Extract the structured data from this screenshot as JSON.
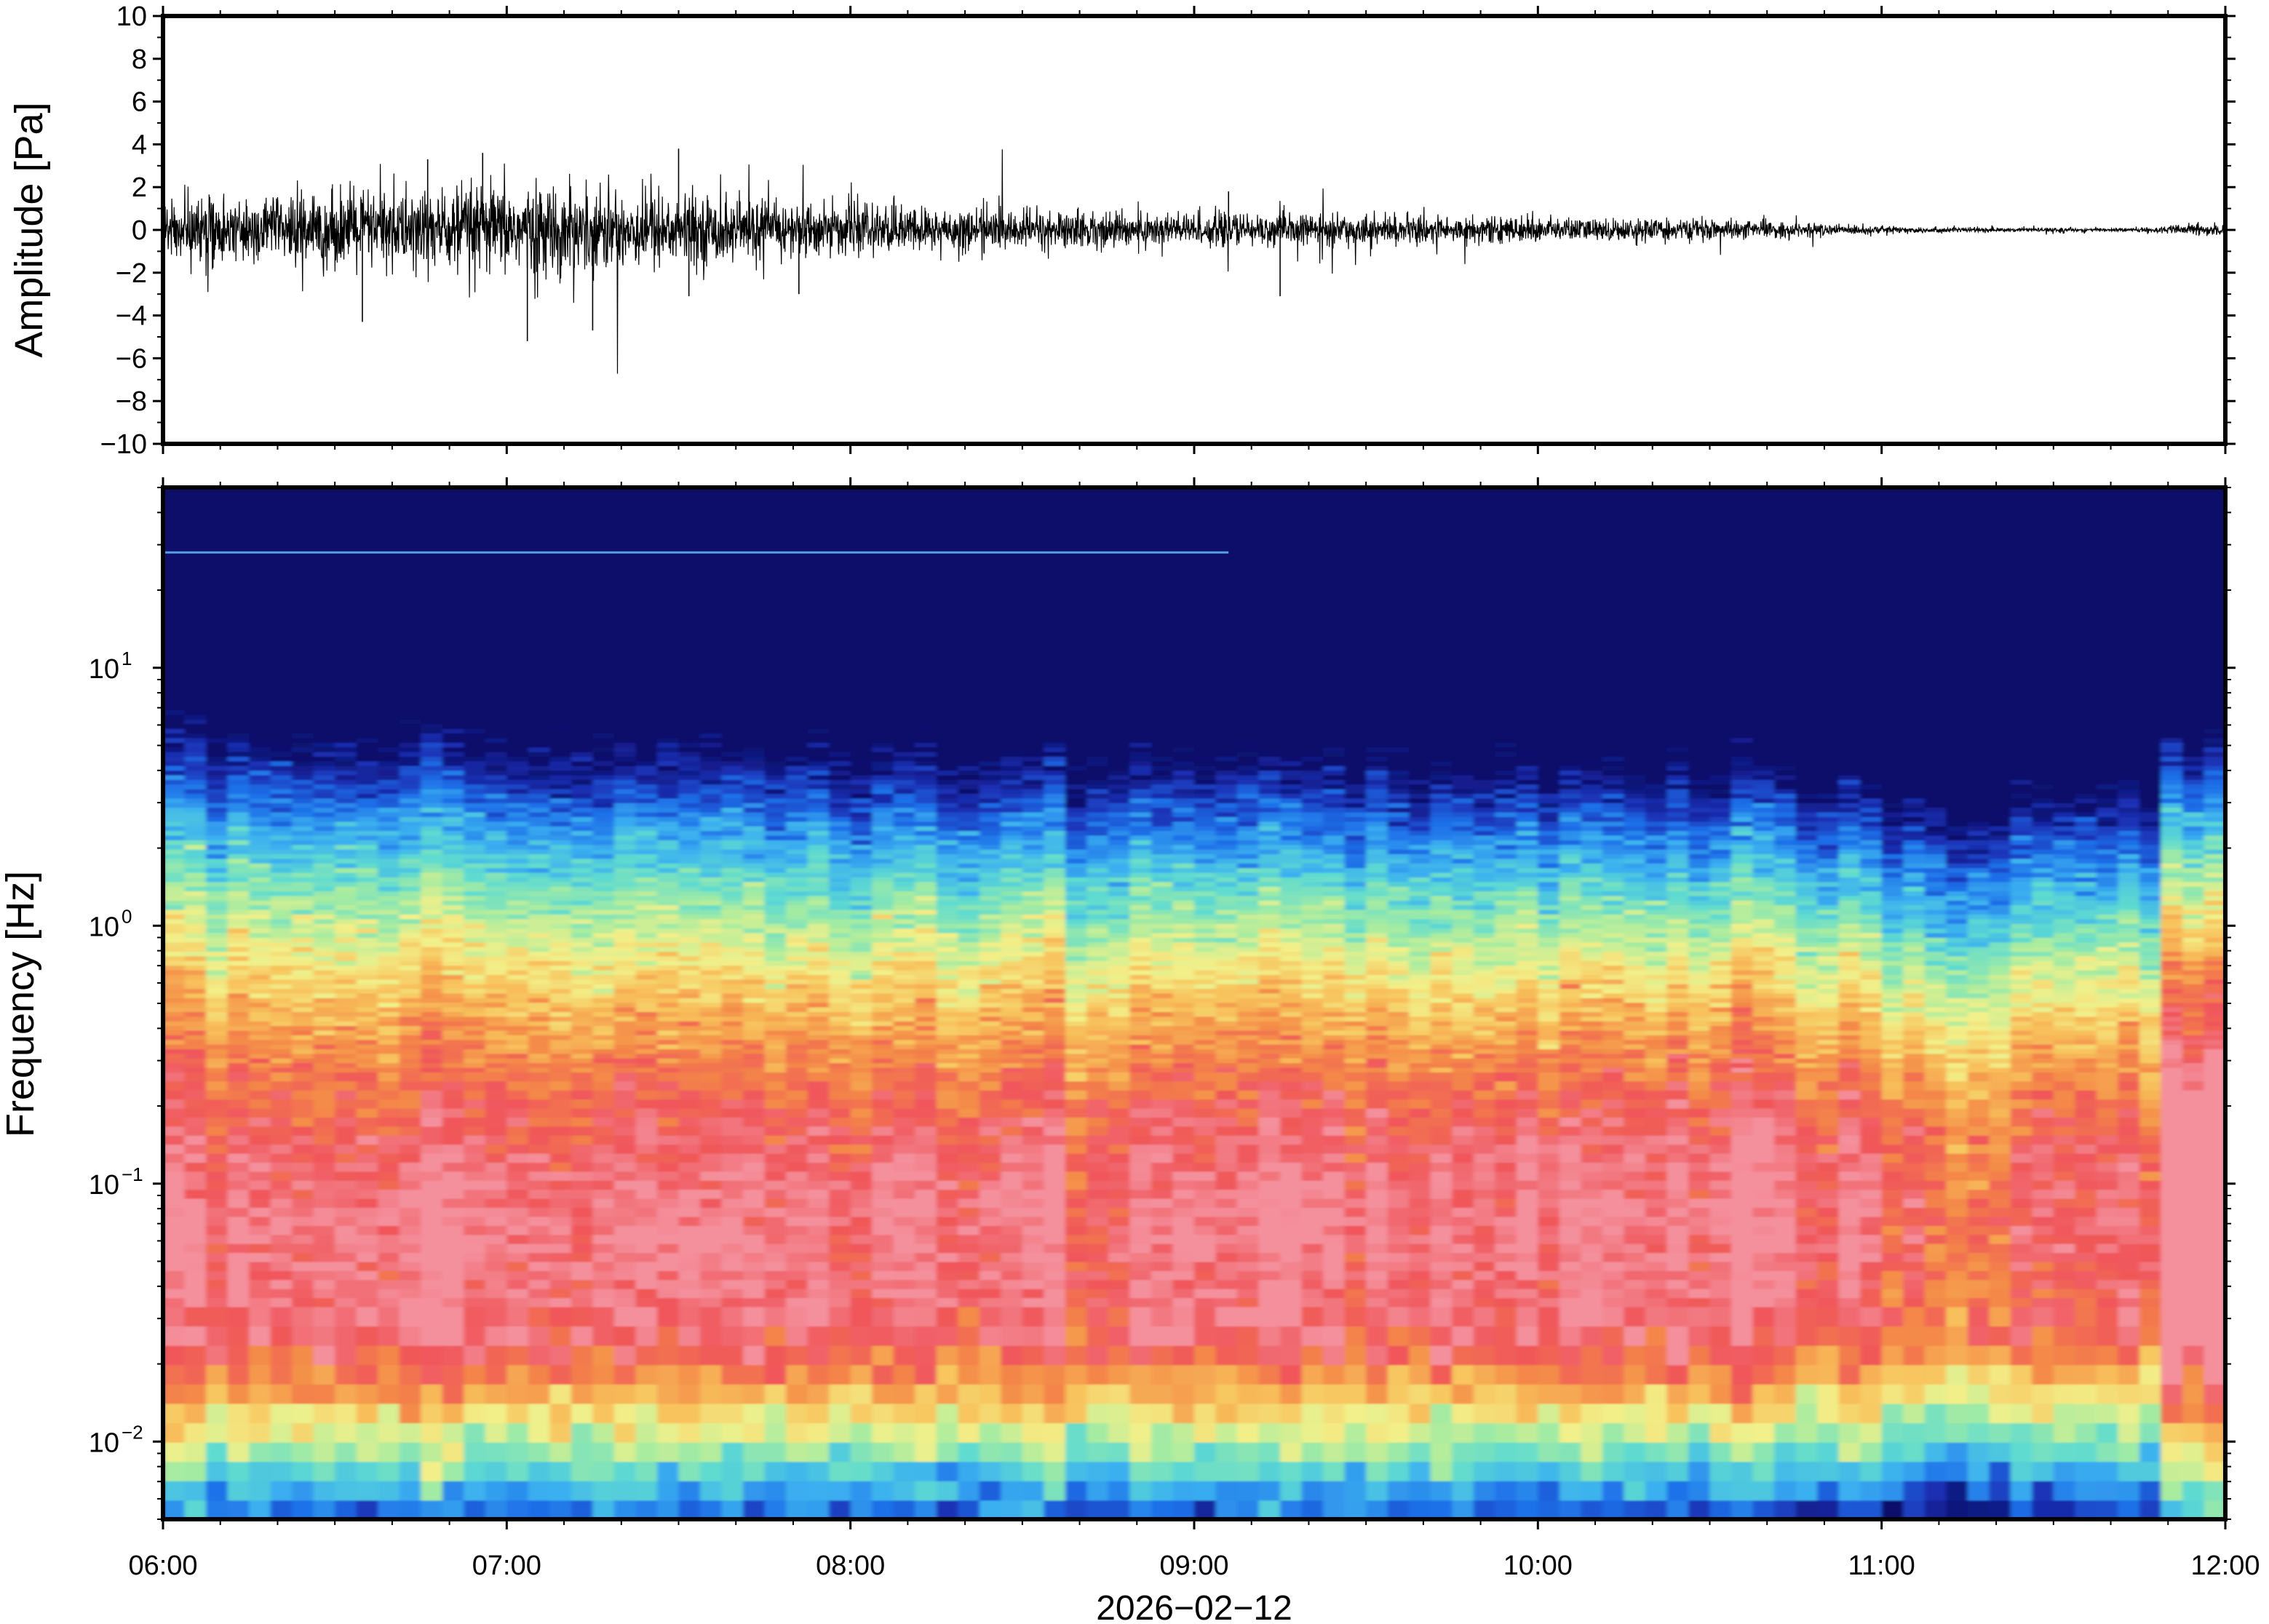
{
  "chart_data": [
    {
      "type": "line",
      "ylabel": "Amplitude [Pa]",
      "ylim": [
        -10,
        10
      ],
      "yticks": [
        "10",
        "8",
        "6",
        "4",
        "2",
        "0",
        "−2",
        "−4",
        "−6",
        "−8",
        "−10"
      ],
      "ytick_values": [
        10,
        8,
        6,
        4,
        2,
        0,
        -2,
        -4,
        -6,
        -8,
        -10
      ],
      "xlim": [
        "06:00",
        "12:00"
      ],
      "series": [
        {
          "color": "#000000",
          "envelope_hours": [
            6.0,
            6.25,
            6.5,
            6.75,
            7.0,
            7.25,
            7.5,
            7.75,
            8.0,
            8.25,
            8.5,
            8.75,
            9.0,
            9.25,
            9.5,
            9.75,
            10.0,
            10.25,
            10.5,
            10.75,
            11.0,
            11.25,
            11.5,
            11.75,
            12.0
          ],
          "typical_amplitude_pa": [
            1.2,
            1.3,
            1.5,
            1.7,
            1.8,
            1.7,
            1.5,
            1.2,
            1.0,
            0.9,
            0.8,
            0.75,
            0.7,
            0.65,
            0.6,
            0.55,
            0.5,
            0.45,
            0.4,
            0.3,
            0.15,
            0.1,
            0.08,
            0.08,
            0.3
          ],
          "spikes": [
            {
              "t": 6.58,
              "v": -4.3
            },
            {
              "t": 6.77,
              "v": 3.3
            },
            {
              "t": 6.93,
              "v": 3.6
            },
            {
              "t": 7.06,
              "v": -5.2
            },
            {
              "t": 7.25,
              "v": -4.7
            },
            {
              "t": 7.5,
              "v": 3.8
            },
            {
              "t": 7.53,
              "v": -3.1
            },
            {
              "t": 7.85,
              "v": -3.0
            },
            {
              "t": 9.25,
              "v": -3.1
            },
            {
              "t": 9.1,
              "v": 1.8
            }
          ]
        }
      ]
    },
    {
      "type": "heatmap",
      "ylabel": "Frequency [Hz]",
      "yscale": "log",
      "ylim": [
        0.005,
        50
      ],
      "ytick_values": [
        0.01,
        0.1,
        1,
        10
      ],
      "yticks": [
        {
          "base": "10",
          "exp": "−2"
        },
        {
          "base": "10",
          "exp": "−1"
        },
        {
          "base": "10",
          "exp": "0"
        },
        {
          "base": "10",
          "exp": "1"
        }
      ],
      "xlabel": "2026−02−12",
      "xticks": [
        "06:00",
        "07:00",
        "08:00",
        "09:00",
        "10:00",
        "11:00",
        "12:00"
      ],
      "xtick_hours": [
        6,
        7,
        8,
        9,
        10,
        11,
        12
      ],
      "xlim": [
        "06:00",
        "12:00"
      ],
      "colormap": "jet",
      "colormap_stops": [
        "#0b0f6b",
        "#1a2fb3",
        "#1e6fe8",
        "#3bb0f0",
        "#5fdbd0",
        "#a8eca0",
        "#f2f08a",
        "#f8c25c",
        "#f48a48",
        "#f0565a",
        "#f4909c"
      ],
      "persistent_line_hz": 28
    }
  ]
}
